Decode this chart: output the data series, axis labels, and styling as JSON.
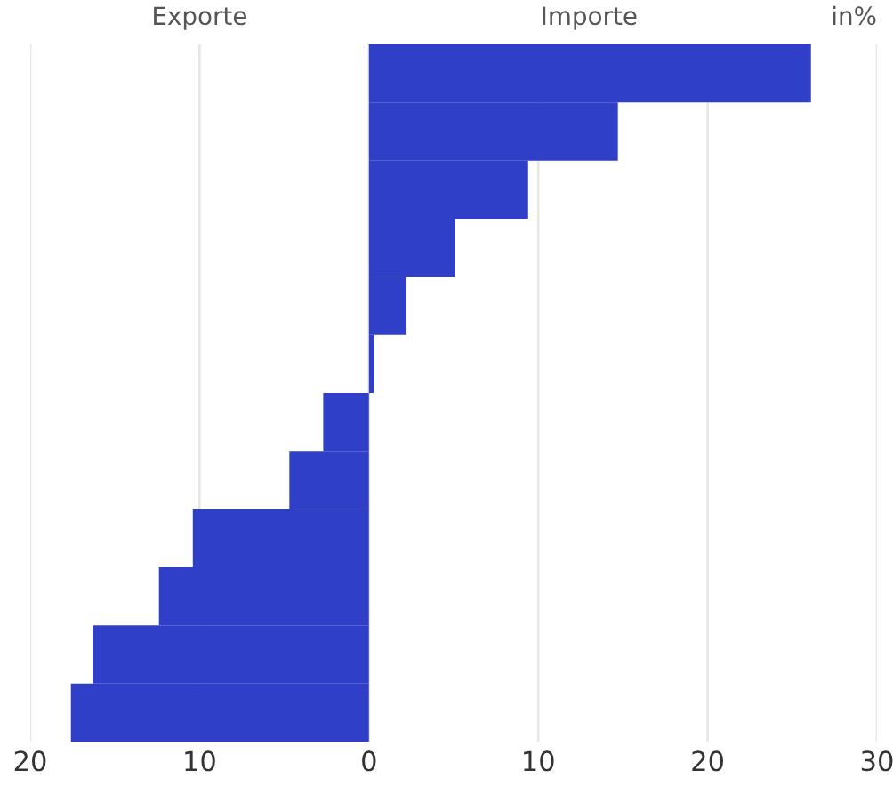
{
  "chart_data": {
    "type": "bar",
    "orientation": "horizontal",
    "categories": [
      null,
      null,
      null,
      null,
      null,
      null,
      null,
      null,
      null,
      null,
      null,
      null
    ],
    "values": [
      26.1,
      14.7,
      9.4,
      5.1,
      2.2,
      0.3,
      -2.7,
      -4.7,
      -10.4,
      -12.4,
      -16.3,
      -17.6
    ],
    "color": "#2f3fc8",
    "xlim": [
      -20,
      30
    ],
    "xticks": [
      {
        "value": -20,
        "label": "20"
      },
      {
        "value": -10,
        "label": "10"
      },
      0,
      10,
      20,
      30
    ],
    "grid": "x",
    "tick_labels": "x",
    "annotations": [
      "Exporte",
      "Importe",
      "in%"
    ]
  }
}
